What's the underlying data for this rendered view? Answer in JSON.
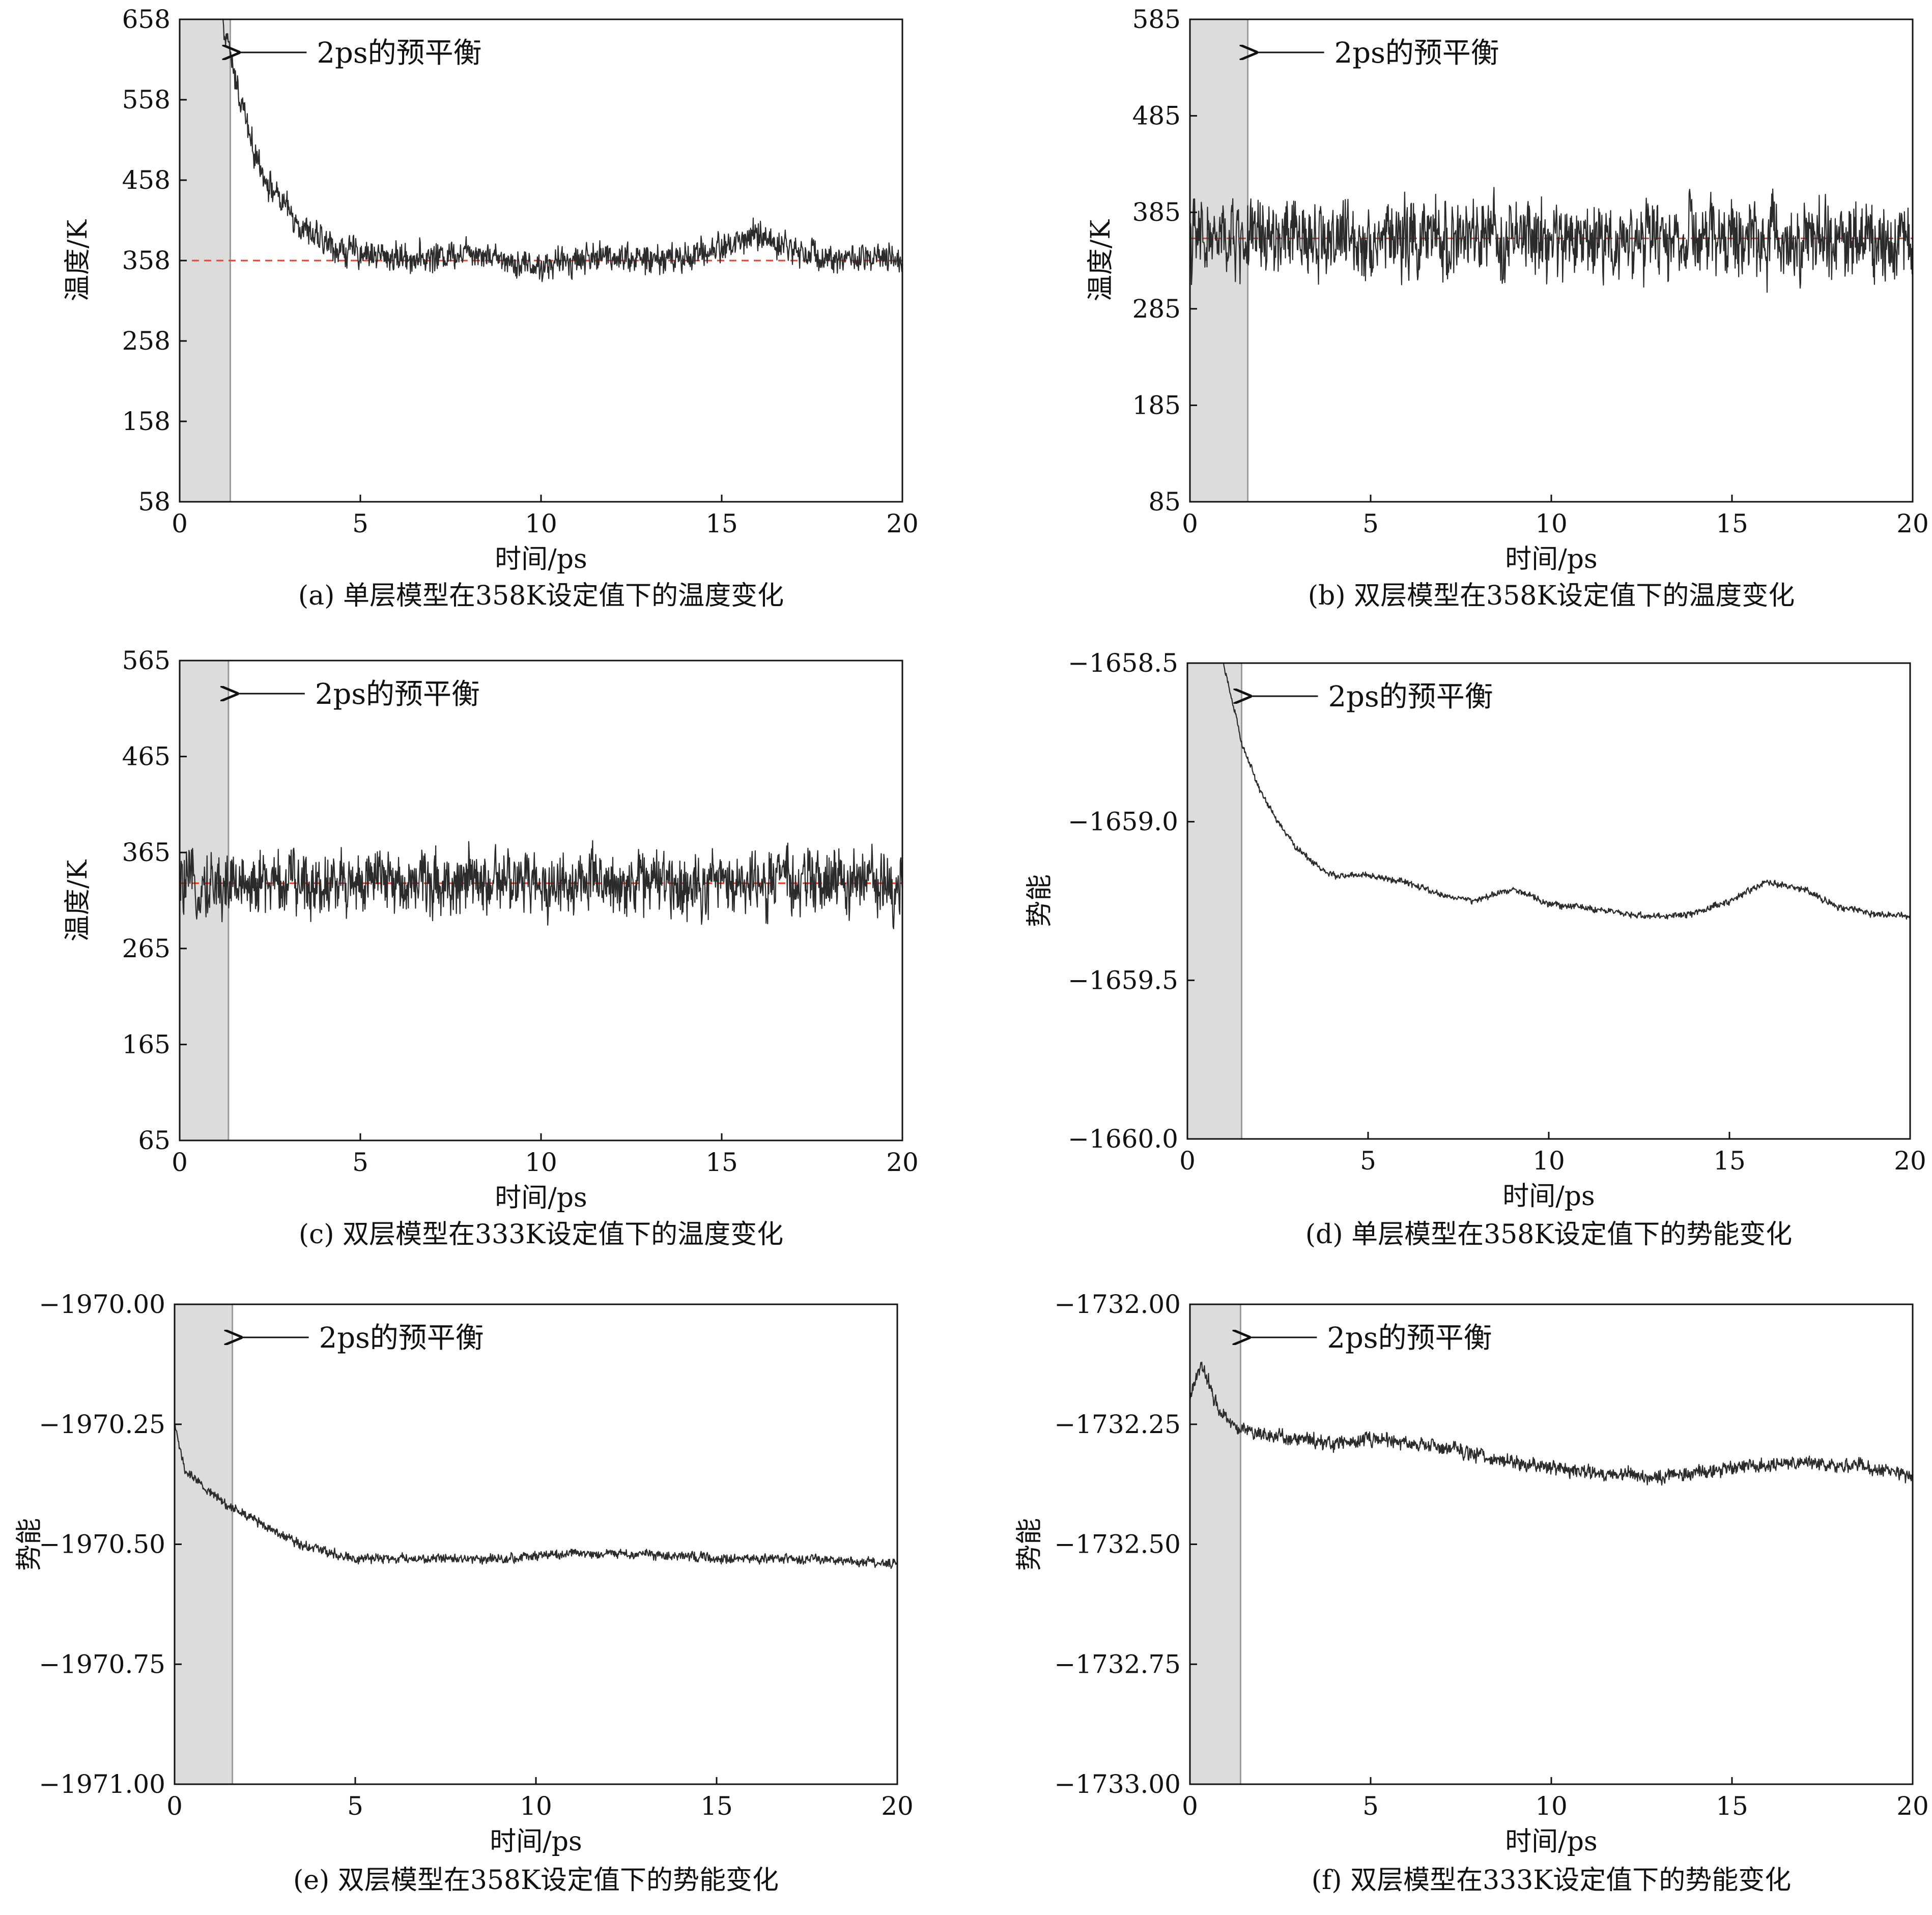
{
  "chart_data": [
    {
      "type": "line",
      "caption": "(a) 单层模型在358K设定值下的温度变化",
      "xlabel": "时间/ps",
      "ylabel": "温度/K",
      "xlim": [
        0,
        20
      ],
      "ylim": [
        58,
        658
      ],
      "xticks": [
        "0",
        "5",
        "10",
        "15",
        "20"
      ],
      "yticks": [
        "658",
        "558",
        "458",
        "358",
        "258",
        "158",
        "58"
      ],
      "ytick_values": [
        658,
        558,
        458,
        358,
        258,
        158,
        58
      ],
      "shaded_region": [
        0,
        1.4
      ],
      "annotation": "2ps的预平衡",
      "reference_line": 358,
      "reference_color": "#e8412c",
      "series": [
        {
          "x": [
            0.0,
            1.0,
            1.4,
            1.8,
            2.0,
            2.5,
            3.0,
            3.5,
            4.0,
            4.5,
            5.0,
            6.0,
            7.0,
            8.0,
            9.0,
            10.0,
            11.0,
            12.0,
            13.0,
            14.0,
            15.0,
            16.0,
            17.0,
            18.0,
            19.0,
            20.0
          ],
          "values": [
            760,
            700,
            610,
            540,
            500,
            450,
            420,
            395,
            380,
            370,
            368,
            362,
            362,
            372,
            360,
            350,
            360,
            365,
            358,
            362,
            375,
            390,
            372,
            362,
            360,
            358
          ],
          "noise": 22
        }
      ]
    },
    {
      "type": "line",
      "caption": "(b) 双层模型在358K设定值下的温度变化",
      "xlabel": "时间/ps",
      "ylabel": "温度/K",
      "xlim": [
        0,
        20
      ],
      "ylim": [
        85,
        585
      ],
      "xticks": [
        "0",
        "5",
        "10",
        "15",
        "20"
      ],
      "yticks": [
        "585",
        "485",
        "385",
        "285",
        "185",
        "85"
      ],
      "ytick_values": [
        585,
        485,
        385,
        285,
        185,
        85
      ],
      "shaded_region": [
        0,
        1.6
      ],
      "annotation": "2ps的预平衡",
      "reference_line": 358,
      "reference_color": "#e8412c",
      "series": [
        {
          "x": [
            0.0,
            2.0,
            5.0,
            10.0,
            15.0,
            20.0
          ],
          "values": [
            355,
            358,
            358,
            357,
            358,
            358
          ],
          "noise": 48
        }
      ]
    },
    {
      "type": "line",
      "caption": "(c) 双层模型在333K设定值下的温度变化",
      "xlabel": "时间/ps",
      "ylabel": "温度/K",
      "xlim": [
        0,
        20
      ],
      "ylim": [
        65,
        565
      ],
      "xticks": [
        "0",
        "5",
        "10",
        "15",
        "20"
      ],
      "yticks": [
        "565",
        "465",
        "365",
        "265",
        "165",
        "65"
      ],
      "ytick_values": [
        565,
        465,
        365,
        265,
        165,
        65
      ],
      "shaded_region": [
        0,
        1.35
      ],
      "annotation": "2ps的预平衡",
      "reference_line": 333,
      "reference_color": "#e8412c",
      "series": [
        {
          "x": [
            0.0,
            2.0,
            5.0,
            10.0,
            15.0,
            20.0
          ],
          "values": [
            330,
            333,
            334,
            333,
            334,
            333
          ],
          "noise": 40
        }
      ]
    },
    {
      "type": "line",
      "caption": "(d) 单层模型在358K设定值下的势能变化",
      "xlabel": "时间/ps",
      "ylabel": "势能",
      "xlim": [
        0,
        20
      ],
      "ylim": [
        -1660.0,
        -1658.5
      ],
      "xticks": [
        "0",
        "5",
        "10",
        "15",
        "20"
      ],
      "yticks": [
        "−1658.5",
        "−1659.0",
        "−1659.5",
        "−1660.0"
      ],
      "ytick_values": [
        -1658.5,
        -1659.0,
        -1659.5,
        -1660.0
      ],
      "shaded_region": [
        0,
        1.5
      ],
      "annotation": "2ps的预平衡",
      "series": [
        {
          "x": [
            0.0,
            1.0,
            1.5,
            2.0,
            2.5,
            3.0,
            3.5,
            4.0,
            5.0,
            6.0,
            7.0,
            8.0,
            9.0,
            10.0,
            11.0,
            12.0,
            13.0,
            14.0,
            15.0,
            16.0,
            17.0,
            18.0,
            19.0,
            20.0
          ],
          "values": [
            -1658.3,
            -1658.5,
            -1658.75,
            -1658.9,
            -1659.0,
            -1659.08,
            -1659.13,
            -1659.17,
            -1659.17,
            -1659.19,
            -1659.23,
            -1659.25,
            -1659.21,
            -1659.26,
            -1659.27,
            -1659.29,
            -1659.3,
            -1659.29,
            -1659.25,
            -1659.19,
            -1659.21,
            -1659.27,
            -1659.29,
            -1659.3
          ],
          "noise": 0.012
        }
      ]
    },
    {
      "type": "line",
      "caption": "(e) 双层模型在358K设定值下的势能变化",
      "xlabel": "时间/ps",
      "ylabel": "势能",
      "xlim": [
        0,
        20
      ],
      "ylim": [
        -1971.0,
        -1970.0
      ],
      "xticks": [
        "0",
        "5",
        "10",
        "15",
        "20"
      ],
      "yticks": [
        "−1970.00",
        "−1970.25",
        "−1970.50",
        "−1970.75",
        "−1971.00"
      ],
      "ytick_values": [
        -1970.0,
        -1970.25,
        -1970.5,
        -1970.75,
        -1971.0
      ],
      "shaded_region": [
        0,
        1.6
      ],
      "annotation": "2ps的预平衡",
      "series": [
        {
          "x": [
            0.0,
            0.3,
            0.8,
            1.5,
            2.5,
            3.5,
            5.0,
            7.0,
            9.0,
            11.0,
            13.0,
            15.0,
            17.0,
            20.0
          ],
          "values": [
            -1970.25,
            -1970.35,
            -1970.38,
            -1970.42,
            -1970.46,
            -1970.5,
            -1970.53,
            -1970.53,
            -1970.53,
            -1970.52,
            -1970.52,
            -1970.53,
            -1970.53,
            -1970.54
          ],
          "noise": 0.012
        }
      ]
    },
    {
      "type": "line",
      "caption": "(f) 双层模型在333K设定值下的势能变化",
      "xlabel": "时间/ps",
      "ylabel": "势能",
      "xlim": [
        0,
        20
      ],
      "ylim": [
        -1733.0,
        -1732.0
      ],
      "xticks": [
        "0",
        "5",
        "10",
        "15",
        "20"
      ],
      "yticks": [
        "−1732.00",
        "−1732.25",
        "−1732.50",
        "−1732.75",
        "−1733.00"
      ],
      "ytick_values": [
        -1732.0,
        -1732.25,
        -1732.5,
        -1732.75,
        -1733.0
      ],
      "shaded_region": [
        0,
        1.4
      ],
      "annotation": "2ps的预平衡",
      "series": [
        {
          "x": [
            0.0,
            0.3,
            0.8,
            1.4,
            2.0,
            3.0,
            4.0,
            5.0,
            7.0,
            9.0,
            11.0,
            13.0,
            15.0,
            17.0,
            19.0,
            20.0
          ],
          "values": [
            -1732.2,
            -1732.12,
            -1732.22,
            -1732.26,
            -1732.27,
            -1732.28,
            -1732.29,
            -1732.28,
            -1732.3,
            -1732.33,
            -1732.35,
            -1732.36,
            -1732.34,
            -1732.33,
            -1732.34,
            -1732.36
          ],
          "noise": 0.018
        }
      ]
    }
  ]
}
